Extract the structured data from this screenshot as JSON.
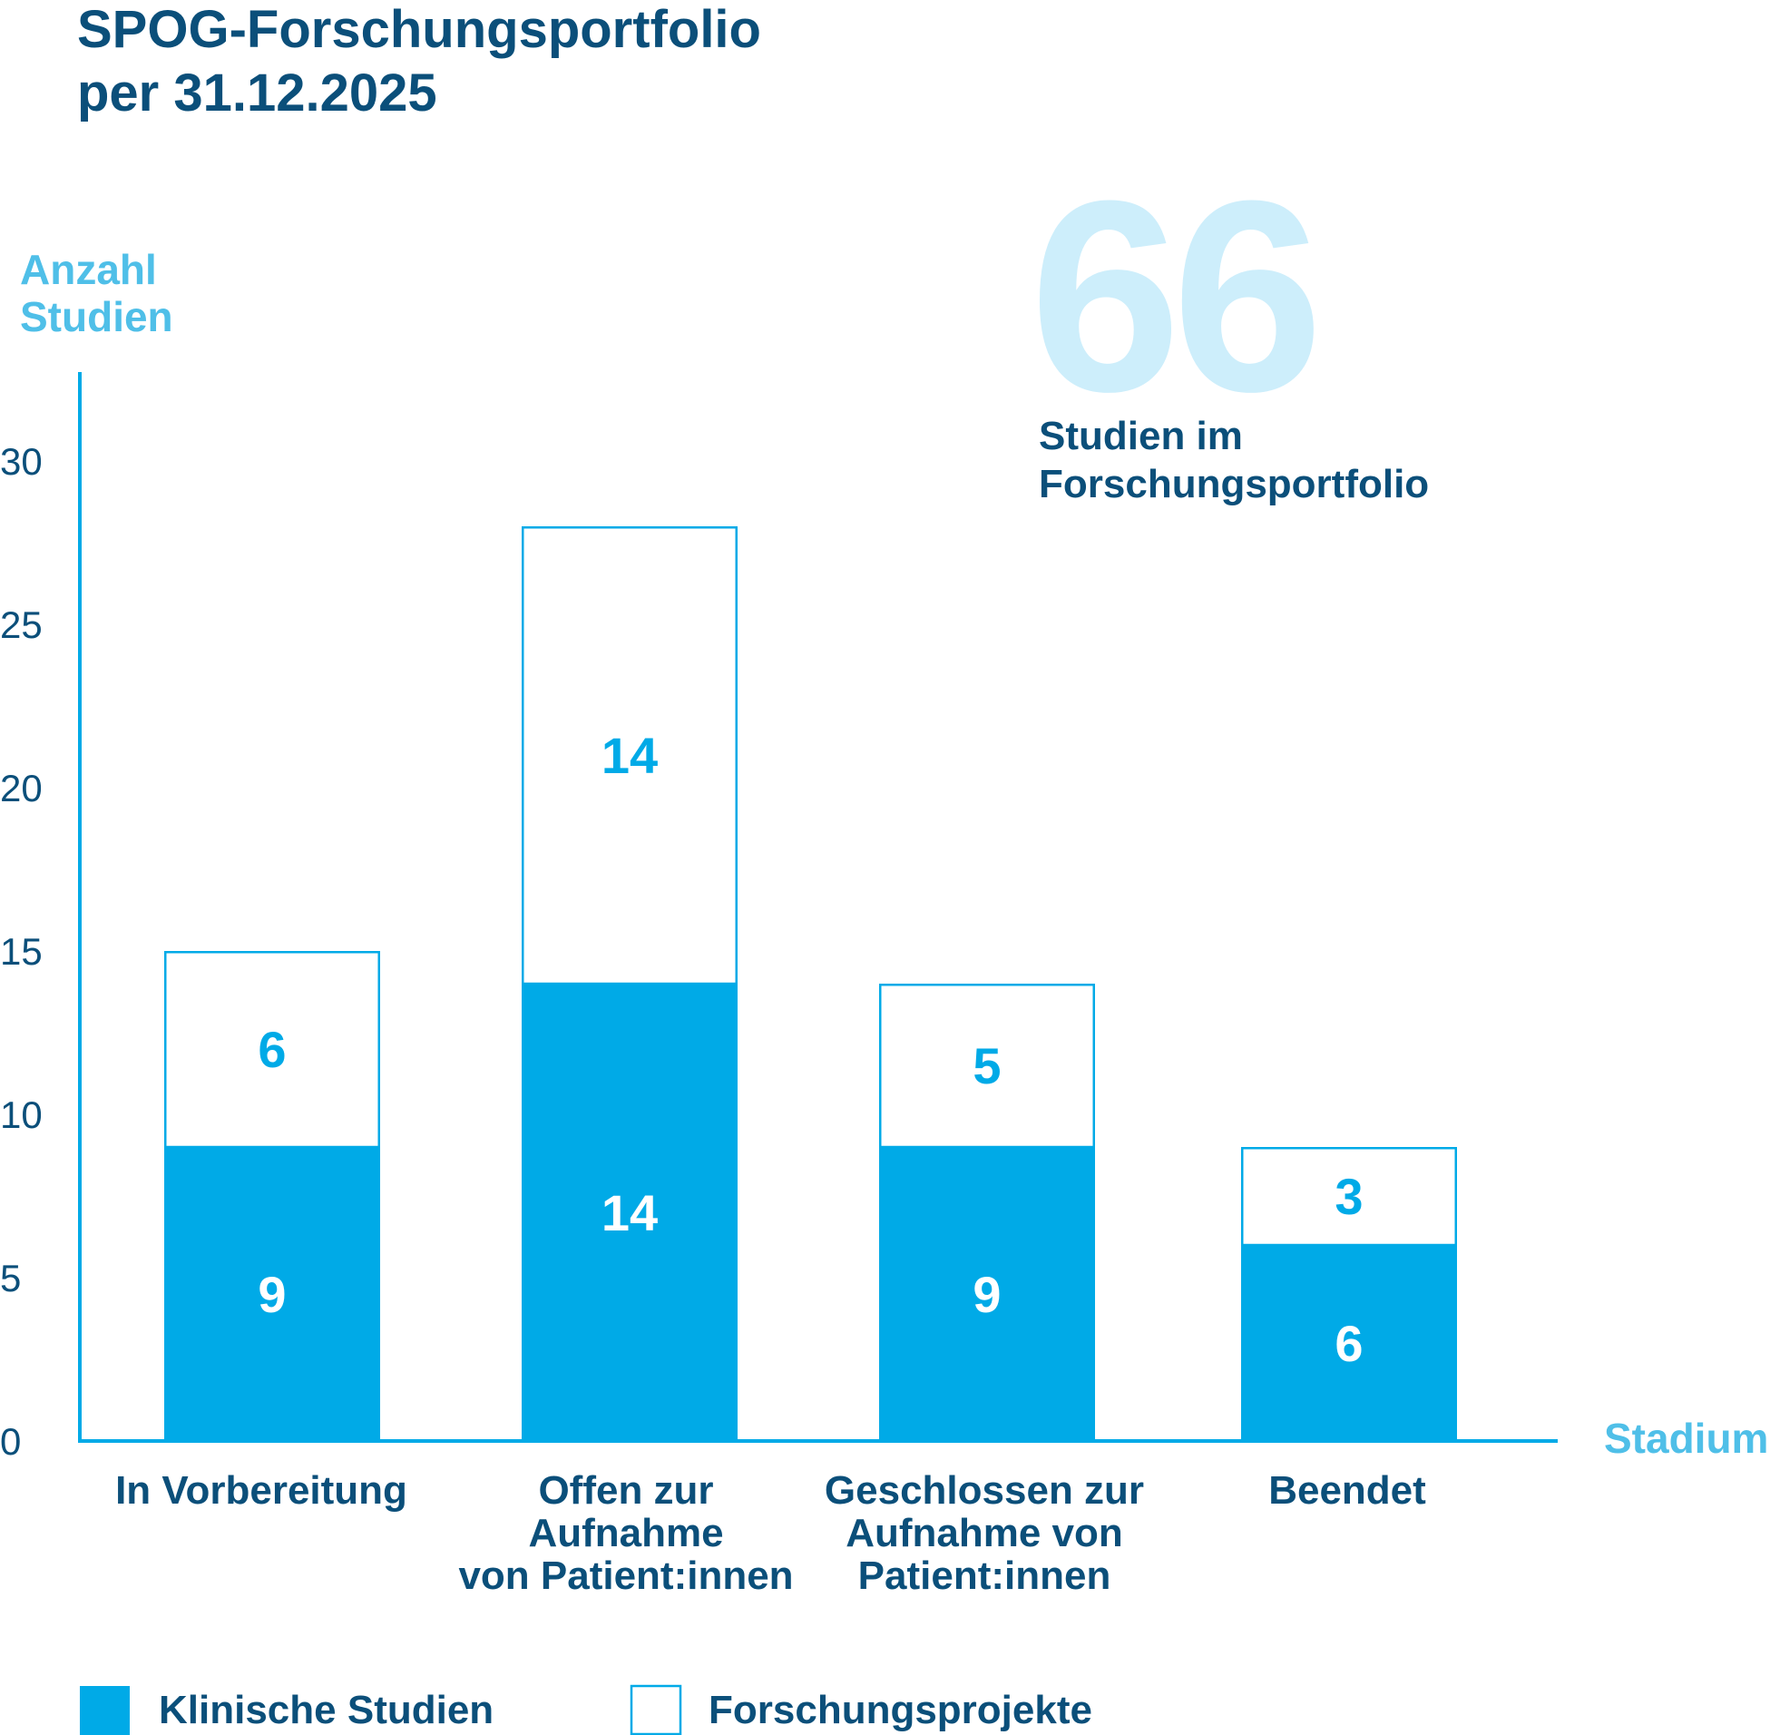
{
  "chart_data": {
    "type": "bar",
    "stacked": true,
    "title_lines": [
      "SPOG-Forschungsportfolio",
      "per 31.12.2025"
    ],
    "ylabel_lines": [
      "Anzahl",
      "Studien"
    ],
    "xlabel": "Stadium",
    "ylim": [
      0,
      30
    ],
    "yticks": [
      "0",
      "5",
      "10",
      "15",
      "20",
      "25",
      "30"
    ],
    "categories": [
      [
        "In Vorbereitung"
      ],
      [
        "Offen zur",
        "Aufnahme",
        "von Patient:innen"
      ],
      [
        "Geschlossen zur",
        "Aufnahme von",
        "Patient:innen"
      ],
      [
        "Beendet"
      ]
    ],
    "series": [
      {
        "name": "Klinische Studien",
        "values": [
          9,
          14,
          9,
          6
        ],
        "color": "#00aae7"
      },
      {
        "name": "Forschungsprojekte",
        "values": [
          6,
          14,
          5,
          3
        ],
        "color": "#ffffff",
        "stroke": "#00aae7"
      }
    ],
    "legend_position": "bottom-left",
    "annotation": {
      "value": "66",
      "label_lines": [
        "Studien im",
        "Forschungsportfolio"
      ]
    },
    "colors": {
      "dark_blue": "#0b4f7a",
      "bright_blue": "#00aae7",
      "light_blue": "#4fbfe8",
      "pale_blue": "#cdeefb"
    }
  }
}
